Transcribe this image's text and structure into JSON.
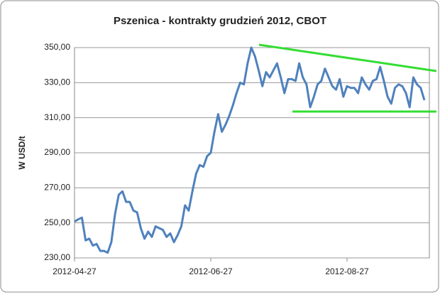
{
  "chart_data": {
    "type": "line",
    "title": "Pszenica - kontrakty grudzień 2012, CBOT",
    "ylabel": "W USD/t",
    "categories": [
      "2012-04-27",
      null,
      null,
      null,
      null,
      null,
      null,
      null,
      null,
      null,
      null,
      null,
      null,
      null,
      null,
      null,
      null,
      null,
      null,
      null,
      null,
      null,
      null,
      null,
      null,
      null,
      null,
      null,
      null,
      null,
      null,
      null,
      null,
      null,
      null,
      null,
      null,
      "2012-06-27",
      null,
      null,
      null,
      null,
      null,
      null,
      null,
      null,
      null,
      null,
      null,
      null,
      null,
      null,
      null,
      null,
      null,
      null,
      null,
      null,
      null,
      null,
      null,
      null,
      null,
      null,
      null,
      null,
      null,
      null,
      null,
      null,
      null,
      null,
      null,
      null,
      "2012-08-27",
      null,
      null,
      null,
      null,
      null,
      null,
      null,
      null,
      null,
      null,
      null,
      null,
      null,
      null,
      null,
      null,
      null,
      null,
      null,
      null,
      null
    ],
    "series": [
      {
        "color": "#4f81bd",
        "values": [
          250.7,
          252,
          253,
          240,
          241,
          237,
          238,
          234,
          234,
          233,
          239,
          255,
          266,
          268,
          262,
          262,
          257,
          256,
          247,
          241,
          245,
          242,
          248,
          247,
          246,
          242,
          244,
          239,
          243,
          248,
          260,
          257,
          268,
          278,
          283,
          282,
          288,
          290,
          302,
          312,
          302,
          306,
          311,
          317,
          324,
          330,
          329,
          341,
          350,
          345,
          337,
          328,
          336,
          333,
          337,
          341,
          333,
          324,
          332,
          332,
          331,
          341,
          333,
          329,
          316,
          322,
          329,
          331,
          338,
          333,
          328,
          326,
          332,
          322,
          328,
          327,
          327,
          324,
          333,
          329,
          326,
          331,
          332,
          339,
          331,
          322,
          318,
          327,
          329,
          328,
          324,
          316,
          333,
          329,
          327,
          320
        ]
      }
    ],
    "ylim": [
      230,
      350
    ],
    "yticks": [
      {
        "value": 230,
        "label": "230,00"
      },
      {
        "value": 250,
        "label": "250,00"
      },
      {
        "value": 270,
        "label": "270,00"
      },
      {
        "value": 290,
        "label": "290,00"
      },
      {
        "value": 310,
        "label": "310,00"
      },
      {
        "value": 330,
        "label": "330,00"
      },
      {
        "value": 350,
        "label": "350,00"
      }
    ],
    "grid": true
  }
}
